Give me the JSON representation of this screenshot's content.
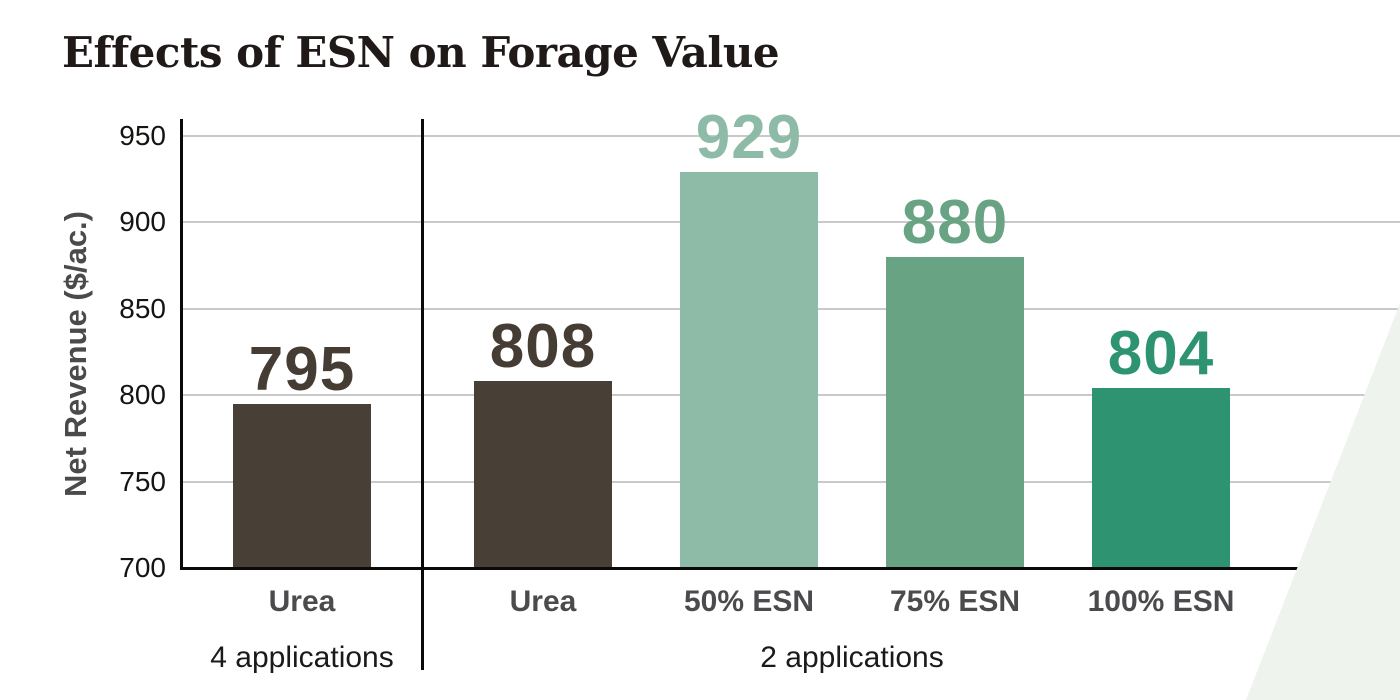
{
  "chart_data": {
    "type": "bar",
    "title": "Effects of ESN on Forage Value",
    "xlabel": "",
    "ylabel": "Net Revenue ($/ac.)",
    "ylim": [
      700,
      950
    ],
    "yticks": [
      700,
      750,
      800,
      850,
      900,
      950
    ],
    "grid": true,
    "legend": "none",
    "groups": [
      {
        "group_label": "4 applications",
        "bars": [
          {
            "category": "Urea",
            "value": 795,
            "bar_color": "#483f36",
            "value_label_color": "#453c34"
          }
        ]
      },
      {
        "group_label": "2 applications",
        "bars": [
          {
            "category": "Urea",
            "value": 808,
            "bar_color": "#483f36",
            "value_label_color": "#453c34"
          },
          {
            "category": "50% ESN",
            "value": 929,
            "bar_color": "#8ebba7",
            "value_label_color": "#8ebba7"
          },
          {
            "category": "75% ESN",
            "value": 880,
            "bar_color": "#68a384",
            "value_label_color": "#68a384"
          },
          {
            "category": "100% ESN",
            "value": 804,
            "bar_color": "#2e9370",
            "value_label_color": "#2e9370"
          }
        ]
      }
    ],
    "colors": {
      "title": "#1f1a18",
      "y_axis_label": "#4a4a4c",
      "tick_label": "#161412",
      "category_label": "#4b4b4d",
      "group_label": "#1c1a18",
      "gridline": "#c9c9c9",
      "axis_line": "#0b0a09",
      "background": "#ffffff",
      "corner_shape": "#eef3ee"
    }
  }
}
